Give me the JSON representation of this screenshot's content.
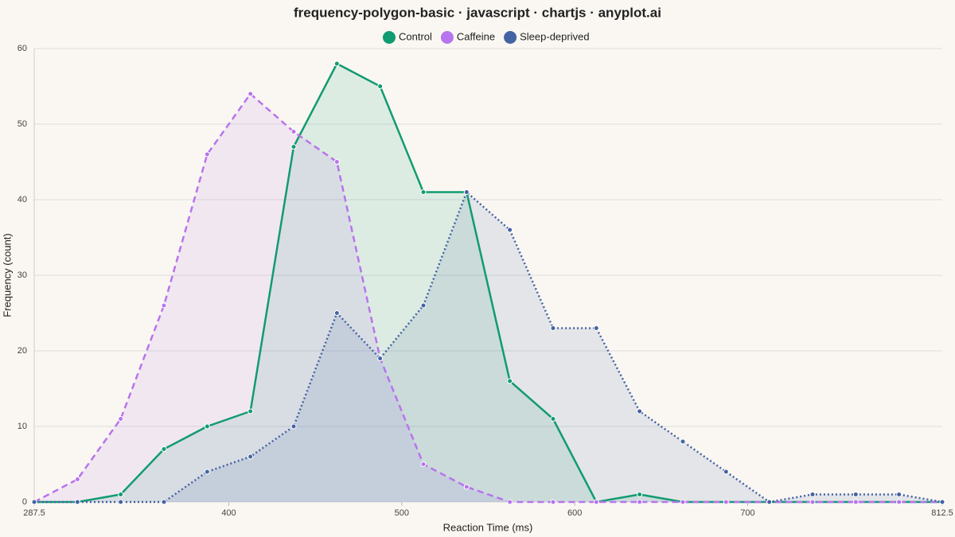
{
  "chart_data": {
    "type": "line",
    "title": "frequency-polygon-basic · javascript · chartjs · anyplot.ai",
    "x_label": "Reaction Time (ms)",
    "y_label": "Frequency (count)",
    "x": [
      287.5,
      312.5,
      337.5,
      362.5,
      387.5,
      412.5,
      437.5,
      462.5,
      487.5,
      512.5,
      537.5,
      562.5,
      587.5,
      612.5,
      637.5,
      662.5,
      687.5,
      712.5,
      737.5,
      762.5,
      787.5,
      812.5
    ],
    "series": [
      {
        "name": "Control",
        "color": "#119b71",
        "dash": "solid",
        "values": [
          0,
          0,
          1,
          7,
          10,
          12,
          47,
          58,
          55,
          41,
          41,
          16,
          11,
          0,
          1,
          0,
          0,
          0,
          0,
          0,
          0,
          0
        ]
      },
      {
        "name": "Caffeine",
        "color": "#b874ee",
        "dash": "dashed",
        "values": [
          0,
          3,
          11,
          26,
          46,
          54,
          49,
          45,
          19,
          5,
          2,
          0,
          0,
          0,
          0,
          0,
          0,
          0,
          0,
          0,
          0,
          0
        ]
      },
      {
        "name": "Sleep-deprived",
        "color": "#4463a3",
        "dash": "dotted",
        "values": [
          0,
          0,
          0,
          0,
          4,
          6,
          10,
          25,
          19,
          26,
          41,
          36,
          23,
          23,
          12,
          8,
          4,
          0,
          1,
          1,
          1,
          0
        ]
      }
    ],
    "xlim": [
      287.5,
      812.5
    ],
    "xticks": [
      287.5,
      400,
      500,
      600,
      700,
      812.5
    ],
    "ylim": [
      0,
      60
    ],
    "yticks": [
      0,
      10,
      20,
      30,
      40,
      50,
      60
    ],
    "grid": true,
    "legend": "top"
  }
}
